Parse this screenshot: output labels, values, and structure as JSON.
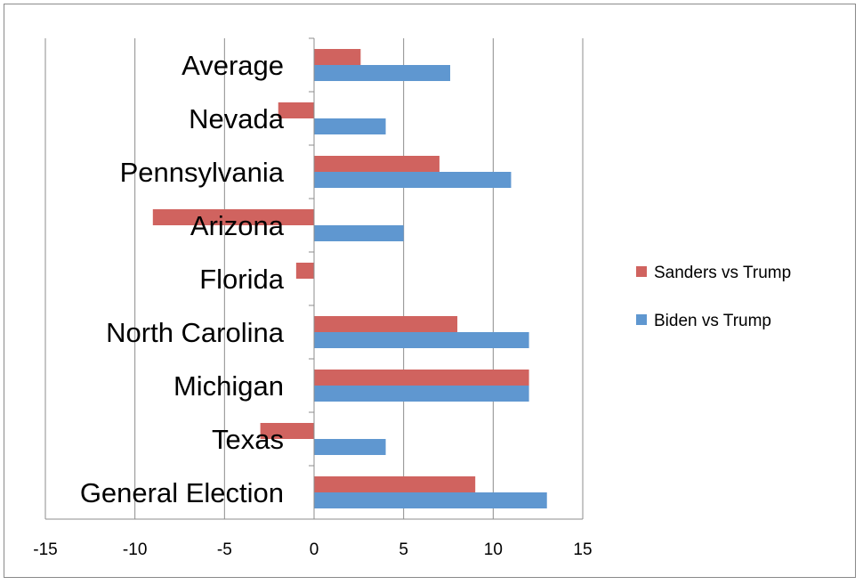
{
  "chart_data": {
    "type": "bar",
    "orientation": "horizontal",
    "categories": [
      "General Election",
      "Texas",
      "Michigan",
      "North Carolina",
      "Florida",
      "Arizona",
      "Pennsylvania",
      "Nevada",
      "Average"
    ],
    "series": [
      {
        "name": "Sanders vs Trump",
        "color": "#d0635f",
        "values": [
          9,
          -3,
          12,
          8,
          -1,
          -9,
          7,
          -2,
          2.6
        ]
      },
      {
        "name": "Biden vs Trump",
        "color": "#5f97d0",
        "values": [
          13,
          4,
          12,
          12,
          0,
          5,
          11,
          4,
          7.6
        ]
      }
    ],
    "x_ticks": [
      -15,
      -10,
      -5,
      0,
      5,
      10,
      15
    ],
    "xlim": [
      -15,
      15
    ],
    "grid": "vertical",
    "legend_position": "right"
  }
}
